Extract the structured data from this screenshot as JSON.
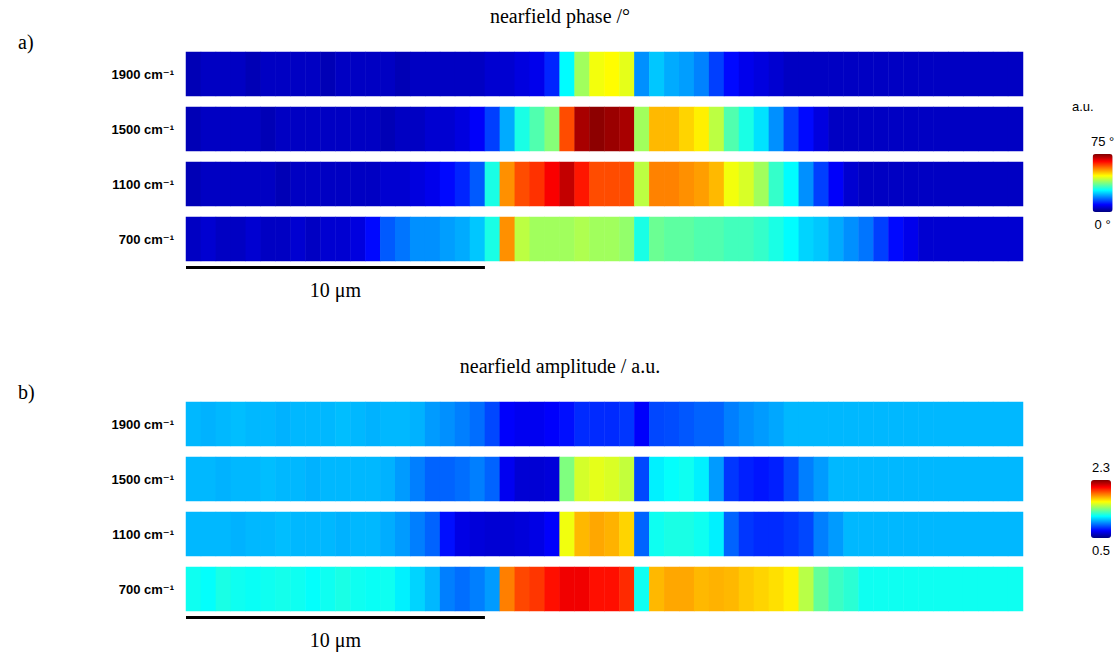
{
  "chart_data": [
    {
      "type": "heatmap",
      "label": "a)",
      "title": "nearfield phase /°",
      "x": [
        0.25,
        0.75,
        1.25,
        1.75,
        2.25,
        2.75,
        3.25,
        3.75,
        4.25,
        4.75,
        5.25,
        5.75,
        6.25,
        6.75,
        7.25,
        7.75,
        8.25,
        8.75,
        9.25,
        9.75,
        10.25,
        10.75,
        11.25,
        11.75,
        12.25,
        12.75,
        13.25,
        13.75,
        14.25,
        14.75,
        15.25,
        15.75,
        16.25,
        16.75,
        17.25,
        17.75,
        18.25,
        18.75,
        19.25,
        19.75,
        20.25,
        20.75,
        21.25,
        21.75,
        22.25,
        22.75,
        23.25,
        23.75,
        24.25,
        24.75,
        25.25,
        25.75,
        26.25,
        26.75,
        27.25,
        27.75
      ],
      "xlim": [
        0,
        28
      ],
      "tick_labels": "y",
      "rows": [
        {
          "label": "1900 cm⁻¹",
          "values": [
            4,
            5,
            5,
            5,
            4,
            5,
            5,
            5,
            5,
            4,
            5,
            5,
            5,
            5,
            4,
            5,
            5,
            5,
            5,
            5,
            6,
            6,
            7,
            8,
            12,
            28,
            40,
            46,
            47,
            45,
            20,
            24,
            22,
            21,
            19,
            14,
            10,
            8,
            7,
            6,
            5,
            5,
            5,
            5,
            5,
            5,
            5,
            5,
            5,
            5,
            5,
            5,
            5,
            5,
            5,
            5
          ]
        },
        {
          "label": "1500 cm⁻¹",
          "values": [
            4,
            5,
            5,
            5,
            5,
            4,
            5,
            5,
            5,
            5,
            5,
            5,
            5,
            4,
            5,
            5,
            6,
            6,
            7,
            9,
            14,
            22,
            30,
            34,
            38,
            60,
            72,
            74,
            73,
            72,
            40,
            52,
            52,
            50,
            48,
            42,
            34,
            30,
            26,
            20,
            14,
            10,
            7,
            5,
            5,
            5,
            5,
            5,
            5,
            5,
            5,
            5,
            5,
            5,
            5,
            5
          ]
        },
        {
          "label": "1100 cm⁻¹",
          "values": [
            4,
            5,
            5,
            5,
            5,
            5,
            4,
            5,
            5,
            5,
            5,
            5,
            5,
            6,
            6,
            7,
            8,
            10,
            12,
            16,
            30,
            55,
            60,
            62,
            66,
            70,
            64,
            60,
            60,
            60,
            42,
            56,
            56,
            55,
            54,
            52,
            46,
            44,
            40,
            32,
            28,
            20,
            14,
            9,
            6,
            5,
            5,
            5,
            5,
            5,
            5,
            5,
            5,
            5,
            5,
            5
          ]
        },
        {
          "label": "700 cm⁻¹",
          "values": [
            5,
            6,
            5,
            5,
            6,
            5,
            5,
            6,
            5,
            6,
            6,
            7,
            10,
            16,
            18,
            20,
            20,
            21,
            22,
            24,
            30,
            55,
            42,
            40,
            40,
            40,
            41,
            40,
            40,
            39,
            30,
            36,
            35,
            35,
            34,
            34,
            33,
            33,
            32,
            30,
            28,
            25,
            24,
            22,
            20,
            18,
            14,
            10,
            8,
            6,
            6,
            6,
            6,
            6,
            6,
            6
          ]
        }
      ],
      "colorbar": {
        "title": "a.u.",
        "range": [
          0,
          75
        ],
        "ticks": [
          {
            "value": 0,
            "label": "0 °"
          },
          {
            "value": 75,
            "label": "75 °"
          }
        ]
      },
      "scale_bar": {
        "length": 10,
        "label": "10 μm"
      }
    },
    {
      "type": "heatmap",
      "label": "b)",
      "title": "nearfield amplitude / a.u.",
      "x": [
        0.25,
        0.75,
        1.25,
        1.75,
        2.25,
        2.75,
        3.25,
        3.75,
        4.25,
        4.75,
        5.25,
        5.75,
        6.25,
        6.75,
        7.25,
        7.75,
        8.25,
        8.75,
        9.25,
        9.75,
        10.25,
        10.75,
        11.25,
        11.75,
        12.25,
        12.75,
        13.25,
        13.75,
        14.25,
        14.75,
        15.25,
        15.75,
        16.25,
        16.75,
        17.25,
        17.75,
        18.25,
        18.75,
        19.25,
        19.75,
        20.25,
        20.75,
        21.25,
        21.75,
        22.25,
        22.75,
        23.25,
        23.75,
        24.25,
        24.75,
        25.25,
        25.75,
        26.25,
        26.75,
        27.25,
        27.75
      ],
      "xlim": [
        0,
        28
      ],
      "tick_labels": "y",
      "rows": [
        {
          "label": "1900 cm⁻¹",
          "values": [
            1.05,
            1.04,
            1.05,
            1.06,
            1.05,
            1.05,
            1.04,
            1.05,
            1.05,
            1.05,
            1.06,
            1.05,
            1.04,
            1.05,
            1.05,
            1.04,
            1.0,
            0.98,
            0.95,
            0.92,
            0.85,
            0.72,
            0.7,
            0.7,
            0.72,
            0.75,
            0.8,
            0.8,
            0.8,
            0.82,
            0.72,
            0.85,
            0.86,
            0.88,
            0.9,
            0.9,
            0.95,
            0.98,
            1.0,
            1.02,
            1.05,
            1.05,
            1.05,
            1.05,
            1.05,
            1.05,
            1.05,
            1.05,
            1.05,
            1.05,
            1.05,
            1.05,
            1.05,
            1.05,
            1.05,
            1.05
          ]
        },
        {
          "label": "1500 cm⁻¹",
          "values": [
            1.05,
            1.05,
            1.04,
            1.05,
            1.05,
            1.06,
            1.05,
            1.05,
            1.04,
            1.05,
            1.05,
            1.05,
            1.05,
            1.04,
            1.0,
            0.95,
            0.9,
            0.9,
            0.92,
            0.95,
            0.9,
            0.7,
            0.65,
            0.65,
            0.66,
            1.4,
            1.55,
            1.58,
            1.56,
            1.52,
            0.85,
            1.15,
            1.18,
            1.2,
            1.15,
            1.0,
            0.82,
            0.78,
            0.76,
            0.78,
            0.85,
            0.95,
            1.0,
            1.05,
            1.05,
            1.05,
            1.05,
            1.05,
            1.05,
            1.05,
            1.05,
            1.05,
            1.05,
            1.05,
            1.05,
            1.05
          ]
        },
        {
          "label": "1100 cm⁻¹",
          "values": [
            1.05,
            1.05,
            1.05,
            1.04,
            1.05,
            1.05,
            1.06,
            1.05,
            1.05,
            1.05,
            1.04,
            1.05,
            1.05,
            1.03,
            1.0,
            0.95,
            0.9,
            0.75,
            0.68,
            0.66,
            0.65,
            0.65,
            0.66,
            0.68,
            0.72,
            1.6,
            1.75,
            1.78,
            1.76,
            1.7,
            0.9,
            1.2,
            1.22,
            1.22,
            1.2,
            1.15,
            0.9,
            0.82,
            0.8,
            0.8,
            0.82,
            0.85,
            0.95,
            1.0,
            1.05,
            1.05,
            1.05,
            1.05,
            1.05,
            1.05,
            1.05,
            1.05,
            1.05,
            1.05,
            1.05,
            1.05
          ]
        },
        {
          "label": "700 cm⁻¹",
          "values": [
            1.2,
            1.18,
            1.22,
            1.2,
            1.19,
            1.2,
            1.21,
            1.2,
            1.18,
            1.2,
            1.22,
            1.2,
            1.19,
            1.2,
            1.15,
            1.1,
            1.05,
            0.95,
            0.92,
            0.95,
            1.0,
            1.85,
            1.95,
            1.98,
            2.05,
            2.1,
            2.1,
            2.05,
            2.05,
            2.0,
            1.2,
            1.75,
            1.78,
            1.78,
            1.75,
            1.76,
            1.75,
            1.72,
            1.7,
            1.68,
            1.65,
            1.5,
            1.35,
            1.28,
            1.25,
            1.2,
            1.2,
            1.2,
            1.2,
            1.2,
            1.2,
            1.2,
            1.2,
            1.2,
            1.2,
            1.2
          ]
        }
      ],
      "colorbar": {
        "range": [
          0.5,
          2.3
        ],
        "ticks": [
          0.5,
          2.3
        ]
      },
      "scale_bar": {
        "length": 10,
        "label": "10 μm"
      }
    }
  ]
}
